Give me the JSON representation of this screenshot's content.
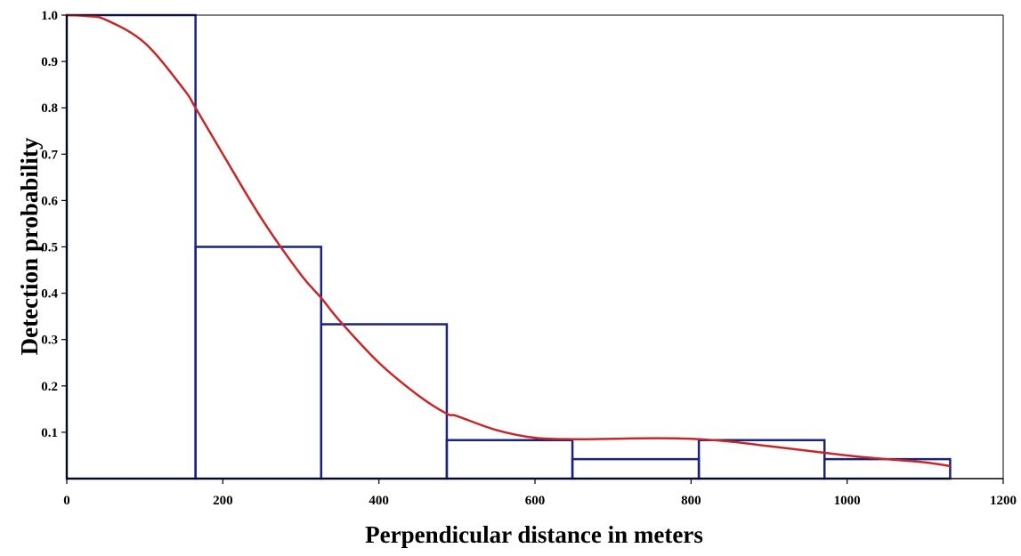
{
  "chart_data": {
    "type": "bar",
    "title": "",
    "xlabel": "Perpendicular distance in meters",
    "ylabel": "Detection probability",
    "xlim": [
      0,
      1200
    ],
    "ylim": [
      0,
      1.0
    ],
    "x_ticks": [
      0,
      200,
      400,
      600,
      800,
      1000,
      1200
    ],
    "x_tick_labels": [
      "0",
      "200",
      "400",
      "600",
      "800",
      "1000",
      "1200"
    ],
    "y_ticks": [
      0.1,
      0.2,
      0.3,
      0.4,
      0.5,
      0.6,
      0.7,
      0.8,
      0.9,
      1.0
    ],
    "y_tick_labels": [
      "0.1",
      "0.2",
      "0.3",
      "0.4",
      "0.5",
      "0.6",
      "0.7",
      "0.8",
      "0.9",
      "1.0"
    ],
    "grid": false,
    "legend": "none",
    "histogram_bins": [
      {
        "x0": 0,
        "x1": 165,
        "value": 1.0
      },
      {
        "x0": 165,
        "x1": 326,
        "value": 0.5
      },
      {
        "x0": 326,
        "x1": 487,
        "value": 0.333
      },
      {
        "x0": 487,
        "x1": 648,
        "value": 0.083
      },
      {
        "x0": 648,
        "x1": 810,
        "value": 0.042
      },
      {
        "x0": 810,
        "x1": 971,
        "value": 0.083
      },
      {
        "x0": 971,
        "x1": 1132,
        "value": 0.042
      }
    ],
    "fitted_curve": {
      "x": [
        0,
        25,
        50,
        100,
        150,
        165,
        200,
        250,
        300,
        326,
        350,
        400,
        450,
        487,
        500,
        550,
        600,
        650,
        700,
        750,
        800,
        850,
        900,
        950,
        1000,
        1050,
        1100,
        1132
      ],
      "y": [
        1.0,
        0.998,
        0.99,
        0.94,
        0.84,
        0.8,
        0.7,
        0.56,
        0.44,
        0.39,
        0.34,
        0.25,
        0.18,
        0.14,
        0.135,
        0.105,
        0.088,
        0.085,
        0.086,
        0.087,
        0.086,
        0.08,
        0.07,
        0.06,
        0.05,
        0.042,
        0.035,
        0.027
      ]
    },
    "colors": {
      "bars": "#1a237e",
      "curve": "#c62828",
      "axes": "#000000"
    }
  }
}
